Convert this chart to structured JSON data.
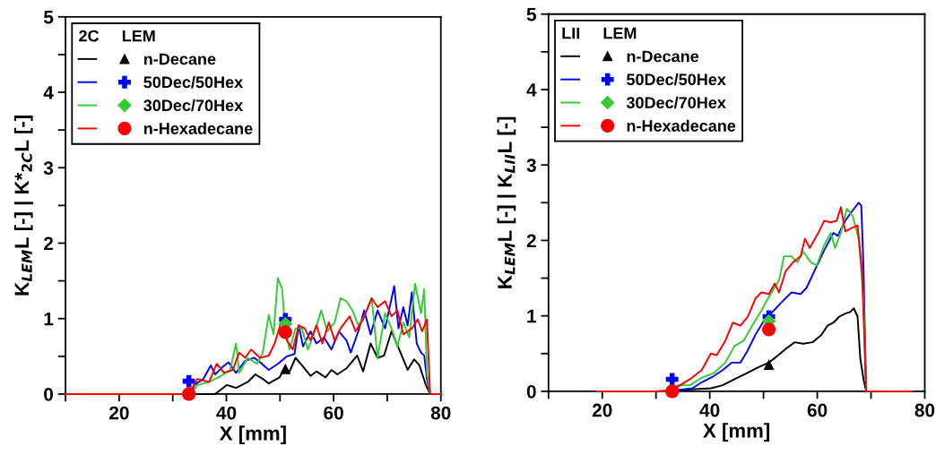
{
  "chart_data": [
    {
      "type": "line",
      "xlabel": "X [mm]",
      "ylabel": "K$_{LEM}$L [-] | K*$_{2C}$L [-]",
      "legend_title": "2C     LEM",
      "legend": "top left",
      "grid": false,
      "xlim": [
        10,
        80
      ],
      "xticks": [
        {
          "value": 10,
          "label": null
        },
        20,
        {
          "value": 30,
          "label": null
        },
        40,
        {
          "value": 50,
          "label": null
        },
        60,
        {
          "value": 70,
          "label": null
        },
        80
      ],
      "ylim": [
        0,
        5
      ],
      "yticks": [
        0,
        {
          "value": 0.5,
          "label": null
        },
        1,
        {
          "value": 1.5,
          "label": null
        },
        2,
        {
          "value": 2.5,
          "label": null
        },
        3,
        {
          "value": 3.5,
          "label": null
        },
        4,
        {
          "value": 4.5,
          "label": null
        },
        5
      ],
      "series": [
        {
          "name": "n-Decane",
          "color": "#000000",
          "x": [
            10,
            37.9,
            40.1,
            41.8,
            44.0,
            45.4,
            46.8,
            47.9,
            49.9,
            50.7,
            51.8,
            52.9,
            54.1,
            55.7,
            56.8,
            58.5,
            59.6,
            60.7,
            62.4,
            64.4,
            65.5,
            66.9,
            68.2,
            69.4,
            70.8,
            71.3,
            72.7,
            73.8,
            75.0,
            76.0,
            77.2,
            78.0,
            80
          ],
          "values": [
            0,
            0,
            0.12,
            0.08,
            0.16,
            0.26,
            0.2,
            0.14,
            0.22,
            0.32,
            0.3,
            0.48,
            0.38,
            0.24,
            0.3,
            0.22,
            0.32,
            0.26,
            0.34,
            0.51,
            0.3,
            0.67,
            0.48,
            0.51,
            0.83,
            0.75,
            0.51,
            0.32,
            0.46,
            0.38,
            0.12,
            0,
            0
          ]
        },
        {
          "name": "50Dec/50Hex",
          "color": "#0000ff",
          "x": [
            10,
            33.5,
            34.0,
            35.7,
            37.1,
            37.9,
            39.3,
            40.4,
            41.8,
            43.5,
            45.2,
            46.3,
            47.9,
            49.6,
            51.3,
            52.7,
            53.5,
            54.3,
            55.7,
            56.8,
            58.2,
            59.6,
            61.0,
            62.4,
            63.2,
            64.6,
            65.7,
            66.9,
            68.2,
            69.6,
            71.3,
            72.1,
            73.0,
            73.8,
            74.6,
            75.5,
            76.3,
            76.9,
            77.4,
            78.0,
            80
          ],
          "values": [
            0,
            0,
            0.12,
            0.2,
            0.38,
            0.26,
            0.36,
            0.42,
            0.28,
            0.44,
            0.48,
            0.42,
            0.32,
            0.4,
            0.5,
            0.53,
            0.91,
            0.63,
            0.83,
            0.67,
            0.75,
            0.59,
            0.83,
            0.71,
            0.55,
            0.83,
            1.11,
            0.79,
            1.11,
            0.87,
            1.43,
            0.87,
            1.15,
            0.91,
            1.35,
            0.67,
            0.55,
            0.51,
            0.2,
            0,
            0
          ]
        },
        {
          "name": "30Dec/70Hex",
          "color": "#33cc33",
          "x": [
            10,
            33.5,
            34.6,
            36.8,
            39.0,
            40.7,
            41.8,
            42.4,
            44.0,
            45.7,
            46.8,
            47.9,
            48.8,
            49.6,
            50.4,
            51.0,
            51.8,
            52.9,
            54.1,
            55.2,
            56.3,
            57.7,
            58.8,
            60.2,
            61.3,
            62.4,
            63.5,
            64.6,
            65.7,
            67.1,
            68.2,
            69.6,
            70.8,
            71.9,
            73.0,
            74.1,
            75.2,
            76.3,
            76.9,
            77.4,
            78.0,
            80
          ],
          "values": [
            0,
            0,
            0.12,
            0.16,
            0.24,
            0.32,
            0.67,
            0.28,
            0.48,
            0.4,
            0.55,
            1.05,
            0.79,
            1.54,
            1.39,
            0.83,
            0.59,
            0.87,
            0.87,
            0.59,
            0.79,
            1.11,
            0.83,
            0.95,
            1.27,
            1.23,
            1.11,
            0.91,
            1.03,
            1.27,
            0.48,
            1.07,
            0.87,
            0.63,
            0.95,
            0.75,
            1.46,
            1.07,
            1.39,
            0.28,
            0,
            0
          ]
        },
        {
          "name": "n-Hexadecane",
          "color": "#ff0000",
          "x": [
            10,
            33.0,
            34.6,
            36.8,
            38.2,
            39.6,
            41.2,
            42.4,
            43.5,
            44.6,
            46.3,
            47.9,
            49.0,
            50.2,
            51.3,
            52.4,
            53.5,
            54.6,
            55.7,
            56.8,
            57.9,
            59.1,
            60.2,
            61.3,
            63.0,
            64.1,
            65.5,
            67.1,
            68.2,
            69.6,
            70.8,
            71.9,
            73.0,
            74.6,
            75.7,
            76.5,
            77.4,
            78.0,
            80
          ],
          "values": [
            0,
            0,
            0.2,
            0.16,
            0.4,
            0.28,
            0.32,
            0.55,
            0.48,
            0.59,
            0.48,
            0.51,
            0.67,
            0.95,
            0.71,
            0.59,
            0.91,
            0.87,
            0.71,
            0.91,
            0.67,
            0.95,
            0.71,
            0.87,
            1.03,
            0.83,
            0.99,
            1.27,
            1.15,
            1.23,
            1.03,
            1.11,
            0.79,
            0.87,
            0.99,
            0.83,
            0.99,
            0,
            0
          ]
        },
        {
          "type": "scatter",
          "marker": "triangle",
          "color": "#000000",
          "x": [
            33,
            51
          ],
          "values": [
            0,
            0.33
          ]
        },
        {
          "type": "scatter",
          "marker": "cross",
          "color": "#0000ff",
          "x": [
            33,
            51
          ],
          "values": [
            0.17,
            0.99
          ]
        },
        {
          "type": "scatter",
          "marker": "diamond",
          "color": "#33cc33",
          "x": [
            33,
            51
          ],
          "values": [
            0,
            0.93
          ]
        },
        {
          "type": "scatter",
          "marker": "circle",
          "color": "#ff0000",
          "x": [
            33,
            51
          ],
          "values": [
            0,
            0.82
          ]
        }
      ]
    },
    {
      "type": "line",
      "xlabel": "X [mm]",
      "ylabel": "K$_{LEM}$L [-] | K$_{LII}$L [-]",
      "legend_title": "LII     LEM",
      "legend": "top left",
      "grid": false,
      "xlim": [
        10,
        80
      ],
      "xticks": [
        {
          "value": 10,
          "label": null
        },
        20,
        {
          "value": 30,
          "label": null
        },
        40,
        {
          "value": 50,
          "label": null
        },
        60,
        {
          "value": 70,
          "label": null
        },
        80
      ],
      "ylim": [
        0,
        5
      ],
      "yticks": [
        0,
        {
          "value": 0.5,
          "label": null
        },
        1,
        {
          "value": 1.5,
          "label": null
        },
        2,
        {
          "value": 2.5,
          "label": null
        },
        3,
        {
          "value": 3.5,
          "label": null
        },
        4,
        {
          "value": 4.5,
          "label": null
        },
        5
      ],
      "series": [
        {
          "name": "n-Decane",
          "color": "#000000",
          "x": [
            19.0,
            29.6,
            35.2,
            40.2,
            42.4,
            44.6,
            46.9,
            49.1,
            51.0,
            52.4,
            54.1,
            55.8,
            57.4,
            59.1,
            60.8,
            61.9,
            63.0,
            64.1,
            65.2,
            66.1,
            66.8,
            67.5,
            68.0,
            68.6,
            69.1,
            77.5
          ],
          "values": [
            0,
            0,
            0.02,
            0.04,
            0.08,
            0.16,
            0.24,
            0.32,
            0.38,
            0.46,
            0.56,
            0.65,
            0.63,
            0.65,
            0.75,
            0.87,
            0.91,
            0.99,
            1.03,
            1.05,
            1.1,
            0.99,
            0.44,
            0.16,
            0,
            0
          ]
        },
        {
          "name": "50Dec/50Hex",
          "color": "#0000ff",
          "x": [
            19.0,
            32.4,
            34.6,
            36.8,
            38.5,
            40.7,
            42.4,
            44.1,
            45.7,
            46.9,
            48.5,
            50.2,
            51.9,
            53.5,
            55.2,
            56.9,
            58.0,
            59.7,
            61.3,
            63.0,
            63.8,
            65.2,
            66.6,
            67.7,
            68.2,
            68.6,
            69.1,
            77.5
          ],
          "values": [
            0,
            0,
            0.02,
            0.04,
            0.12,
            0.2,
            0.28,
            0.38,
            0.38,
            0.52,
            0.75,
            0.95,
            1.07,
            1.19,
            1.31,
            1.29,
            1.37,
            1.63,
            1.87,
            2.1,
            2.06,
            2.26,
            2.4,
            2.5,
            2.46,
            1.63,
            0,
            0
          ]
        },
        {
          "name": "30Dec/70Hex",
          "color": "#33cc33",
          "x": [
            19.0,
            32.4,
            34.0,
            36.3,
            38.5,
            40.7,
            42.9,
            44.6,
            46.3,
            47.9,
            49.6,
            51.3,
            52.9,
            53.8,
            55.2,
            56.3,
            57.4,
            58.8,
            59.9,
            61.3,
            62.5,
            63.3,
            64.4,
            65.5,
            66.6,
            67.7,
            68.6,
            69.1,
            77.5
          ],
          "values": [
            0,
            0,
            0.08,
            0.08,
            0.18,
            0.24,
            0.38,
            0.6,
            0.67,
            0.87,
            1.07,
            1.29,
            1.47,
            1.79,
            1.79,
            1.71,
            1.85,
            1.71,
            1.67,
            1.94,
            2.1,
            1.9,
            2.1,
            2.42,
            2.32,
            2.02,
            1.23,
            0,
            0
          ]
        },
        {
          "name": "n-Hexadecane",
          "color": "#ff0000",
          "x": [
            19.0,
            31.8,
            34.0,
            36.3,
            38.5,
            40.2,
            41.3,
            42.9,
            44.3,
            45.7,
            47.1,
            48.5,
            49.6,
            51.0,
            52.1,
            52.9,
            54.1,
            55.5,
            56.9,
            57.7,
            58.6,
            60.2,
            61.3,
            62.5,
            63.6,
            64.4,
            65.2,
            66.3,
            67.5,
            68.3,
            69.1,
            77.5
          ],
          "values": [
            0,
            0,
            0.06,
            0.16,
            0.28,
            0.5,
            0.48,
            0.67,
            0.91,
            0.87,
            0.99,
            1.23,
            1.31,
            1.29,
            1.43,
            1.31,
            1.59,
            1.71,
            1.79,
            2.02,
            1.9,
            2.1,
            2.26,
            2.24,
            2.26,
            2.44,
            2.12,
            2.16,
            2.2,
            1.63,
            0,
            0
          ]
        },
        {
          "type": "scatter",
          "marker": "triangle",
          "color": "#000000",
          "x": [
            33,
            51
          ],
          "values": [
            0,
            0.35
          ]
        },
        {
          "type": "scatter",
          "marker": "cross",
          "color": "#0000ff",
          "x": [
            33,
            51
          ],
          "values": [
            0.16,
            0.99
          ]
        },
        {
          "type": "scatter",
          "marker": "diamond",
          "color": "#33cc33",
          "x": [
            33,
            51
          ],
          "values": [
            0,
            0.93
          ]
        },
        {
          "type": "scatter",
          "marker": "circle",
          "color": "#ff0000",
          "x": [
            33,
            51
          ],
          "values": [
            0,
            0.82
          ]
        }
      ]
    }
  ]
}
